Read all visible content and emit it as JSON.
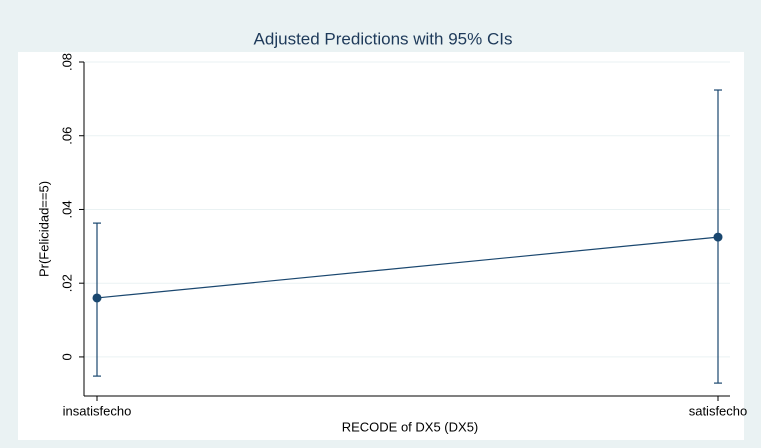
{
  "chart_data": {
    "type": "line",
    "title": "Adjusted Predictions with 95% CIs",
    "x_label": "RECODE of DX5 (DX5)",
    "y_label": "Pr(Felicidad==5)",
    "categories": [
      "insatisfecho",
      "satisfecho"
    ],
    "series": [
      {
        "color": "#1a476f",
        "values": [
          0.016,
          0.0325
        ],
        "lower": [
          -0.0052,
          -0.0071
        ],
        "upper": [
          0.0363,
          0.0724
        ]
      }
    ],
    "ylim": [
      -0.0106,
      0.08
    ],
    "yticks": [
      0,
      {
        "value": 0.02,
        "label": ".02"
      },
      {
        "value": 0.04,
        "label": ".04"
      },
      {
        "value": 0.06,
        "label": ".06"
      },
      {
        "value": 0.08,
        "label": ".08"
      }
    ],
    "grid": true
  }
}
